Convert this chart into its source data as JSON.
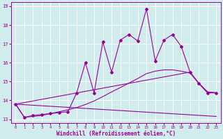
{
  "xlabel": "Windchill (Refroidissement éolien,°C)",
  "xlim": [
    -0.5,
    23.5
  ],
  "ylim": [
    12.8,
    19.2
  ],
  "yticks": [
    13,
    14,
    15,
    16,
    17,
    18,
    19
  ],
  "xticks": [
    0,
    1,
    2,
    3,
    4,
    5,
    6,
    7,
    8,
    9,
    10,
    11,
    12,
    13,
    14,
    15,
    16,
    17,
    18,
    19,
    20,
    21,
    22,
    23
  ],
  "bg_color": "#d0ecec",
  "grid_color": "#ffffff",
  "line_color": "#990099",
  "line1_x": [
    0,
    1,
    2,
    3,
    4,
    5,
    6,
    7,
    8,
    9,
    10,
    11,
    12,
    13,
    14,
    15,
    16,
    17,
    18,
    19,
    20,
    21,
    22,
    23
  ],
  "line1_y": [
    13.8,
    13.1,
    13.2,
    13.25,
    13.3,
    13.35,
    13.4,
    14.4,
    16.0,
    14.4,
    17.1,
    15.5,
    17.2,
    17.5,
    17.15,
    18.85,
    16.1,
    17.2,
    17.5,
    16.85,
    15.5,
    14.9,
    14.4,
    14.4
  ],
  "line2_x": [
    0,
    1,
    2,
    3,
    4,
    5,
    6,
    7,
    8,
    9,
    10,
    11,
    12,
    13,
    14,
    15,
    16,
    17,
    18,
    19,
    20,
    21,
    22,
    23
  ],
  "line2_y": [
    13.8,
    13.1,
    13.15,
    13.2,
    13.3,
    13.4,
    13.5,
    13.62,
    13.78,
    13.97,
    14.2,
    14.45,
    14.68,
    14.92,
    15.16,
    15.42,
    15.55,
    15.62,
    15.62,
    15.55,
    15.45,
    14.92,
    14.45,
    14.4
  ],
  "line3_x": [
    0,
    20,
    21,
    22,
    23
  ],
  "line3_y": [
    13.8,
    15.5,
    14.9,
    14.45,
    14.4
  ],
  "line4_x": [
    0,
    23
  ],
  "line4_y": [
    13.8,
    13.15
  ]
}
